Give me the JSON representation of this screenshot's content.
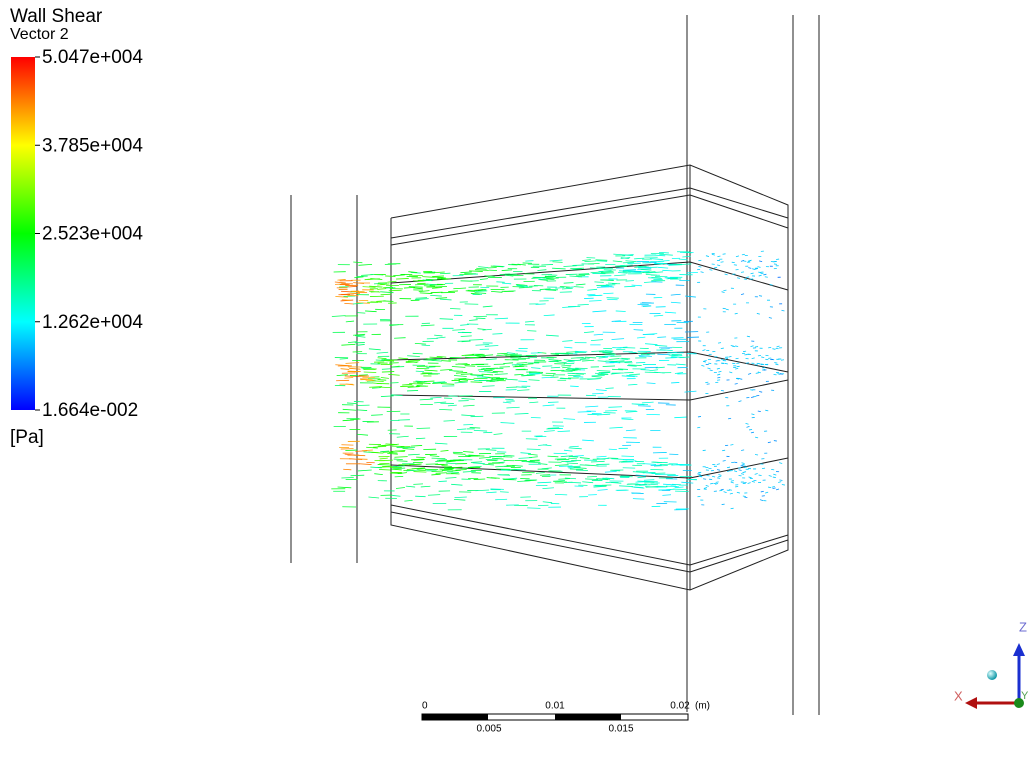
{
  "legend": {
    "title": "Wall Shear",
    "subtitle": "Vector 2",
    "labels": [
      "5.047e+004",
      "3.785e+004",
      "2.523e+004",
      "1.262e+004",
      "1.664e-002"
    ],
    "unit": "[Pa]"
  },
  "scale_bar": {
    "top_labels": [
      "0",
      "0.01",
      "0.02"
    ],
    "unit": "(m)",
    "bottom_labels": [
      "0.005",
      "0.015"
    ]
  },
  "triad": {
    "x": "X",
    "y": "Y",
    "z": "Z"
  }
}
